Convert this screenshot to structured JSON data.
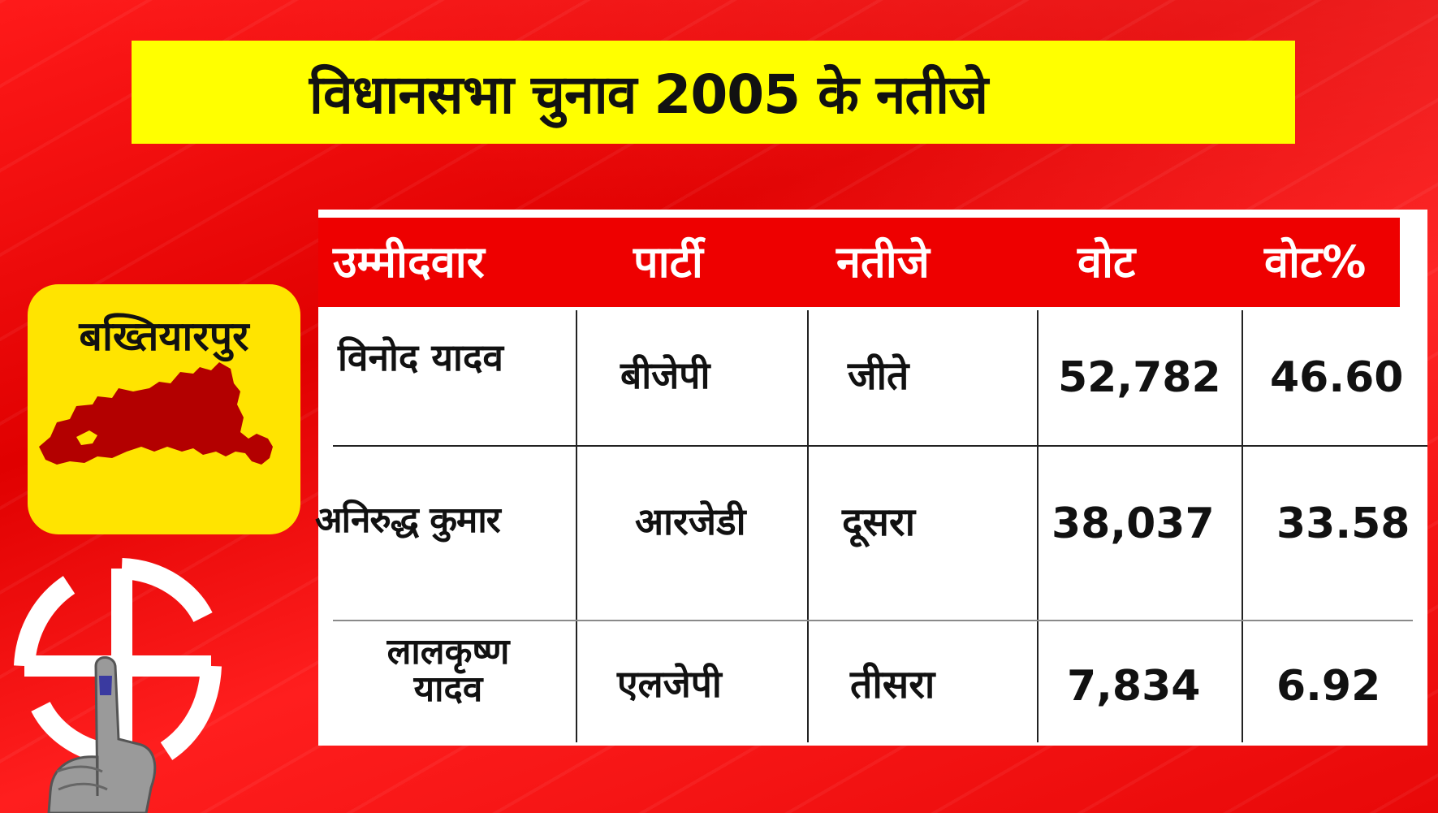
{
  "title": "विधानसभा चुनाव 2005 के नतीजे",
  "constituency": "बख्तियारपुर",
  "colors": {
    "background": "#e60000",
    "title_bar": "#ffff00",
    "table_header": "#ee0000",
    "place_card": "#ffe400",
    "map_fill": "#b30000"
  },
  "icons": [
    "constituency-map-icon",
    "swastik-election-symbol-icon",
    "voting-finger-icon"
  ],
  "table": {
    "headers": {
      "candidate": "उम्मीदवार",
      "party": "पार्टी",
      "result": "नतीजे",
      "votes": "वोट",
      "vote_percent": "वोट%"
    },
    "rows": [
      {
        "candidate": "विनोद यादव",
        "party": "बीजेपी",
        "result": "जीते",
        "votes": "52,782",
        "vote_percent": "46.60"
      },
      {
        "candidate": "अनिरुद्ध कुमार",
        "party": "आरजेडी",
        "result": "दूसरा",
        "votes": "38,037",
        "vote_percent": "33.58"
      },
      {
        "candidate": "लालकृष्ण यादव",
        "party": "एलजेपी",
        "result": "तीसरा",
        "votes": "7,834",
        "vote_percent": "6.92"
      }
    ]
  }
}
